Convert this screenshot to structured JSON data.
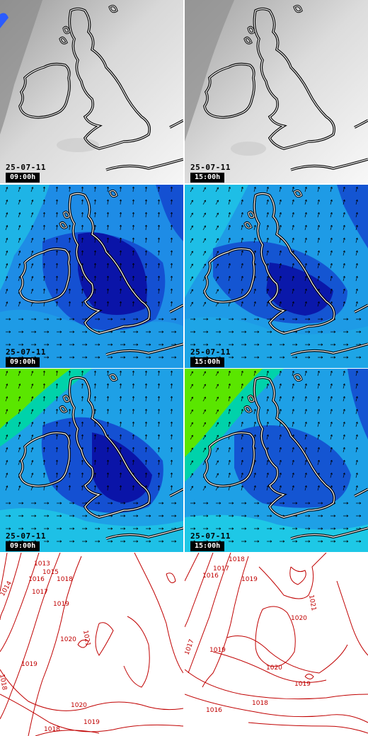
{
  "panels": [
    {
      "id": "cloud-09",
      "type": "cloud",
      "date": "25-07-11",
      "time": "09:00h"
    },
    {
      "id": "cloud-15",
      "type": "cloud",
      "date": "25-07-11",
      "time": "15:00h"
    },
    {
      "id": "wind-a-09",
      "type": "wind",
      "date": "25-07-11",
      "time": "09:00h"
    },
    {
      "id": "wind-a-15",
      "type": "wind",
      "date": "25-07-11",
      "time": "15:00h"
    },
    {
      "id": "wind-b-09",
      "type": "wind-strong",
      "date": "25-07-11",
      "time": "09:00h"
    },
    {
      "id": "wind-b-15",
      "type": "wind-strong",
      "date": "25-07-11",
      "time": "15:00h"
    },
    {
      "id": "pressure-09",
      "type": "pressure",
      "date": "",
      "time": ""
    },
    {
      "id": "pressure-15",
      "type": "pressure",
      "date": "",
      "time": ""
    }
  ],
  "pressure_09_labels": [
    "1013",
    "1014",
    "1016",
    "1015",
    "1017",
    "1018",
    "1019",
    "1020",
    "1021",
    "1018",
    "1019",
    "1020",
    "1019",
    "1018"
  ],
  "pressure_15_labels": [
    "1016",
    "1017",
    "1018",
    "1019",
    "1021",
    "1020",
    "1017",
    "1019",
    "1020",
    "1019",
    "1018",
    "1016"
  ],
  "colors": {
    "isobar": "#c00000",
    "coast_outer": "#000000",
    "coast_inner": "#ffffff",
    "wind_deep": "#0a00b4",
    "wind_mid": "#1e50dc",
    "wind_light": "#1ea0f0",
    "wind_cyan": "#00d2d2",
    "wind_green": "#5ae600"
  }
}
